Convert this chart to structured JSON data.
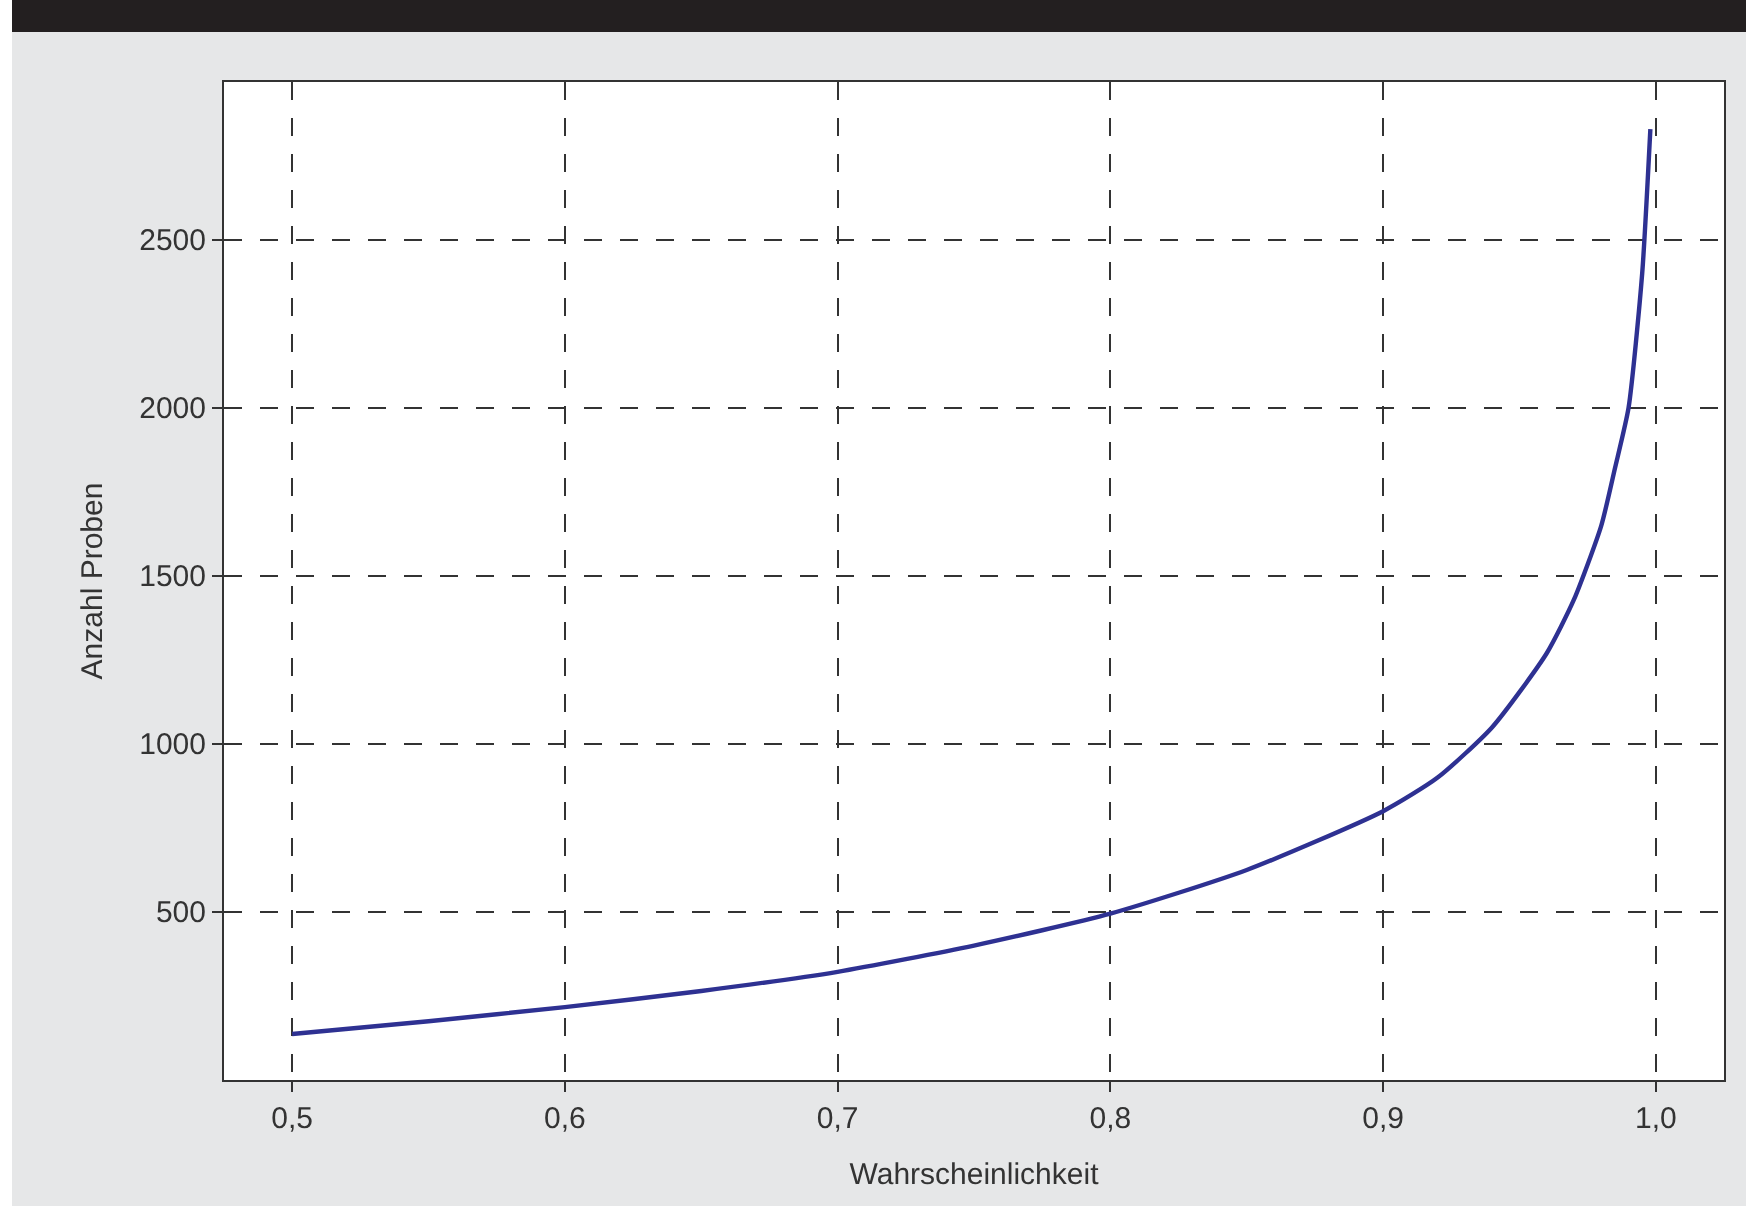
{
  "chart_data": {
    "type": "line",
    "xlabel": "Wahrscheinlichkeit",
    "ylabel": "Anzahl Proben",
    "x": [
      0.5,
      0.55,
      0.6,
      0.65,
      0.7,
      0.75,
      0.8,
      0.85,
      0.9,
      0.92,
      0.94,
      0.96,
      0.97,
      0.98,
      0.985,
      0.99,
      0.995,
      0.998
    ],
    "series": [
      {
        "color": "#2e3192",
        "values": [
          137,
          175,
          217,
          265,
          322,
          400,
          495,
          625,
          800,
          900,
          1050,
          1270,
          1430,
          1650,
          1820,
          2000,
          2400,
          2830
        ]
      }
    ],
    "xlim": [
      0.475,
      1.025
    ],
    "xticks": [
      {
        "value": 0.5,
        "label": "0,5"
      },
      {
        "value": 0.6,
        "label": "0,6"
      },
      {
        "value": 0.7,
        "label": "0,7"
      },
      {
        "value": 0.8,
        "label": "0,8"
      },
      {
        "value": 0.9,
        "label": "0,9"
      },
      {
        "value": 1.0,
        "label": "1,0"
      }
    ],
    "ylim": [
      0,
      2970
    ],
    "yticks": [
      500,
      1000,
      1500,
      2000,
      2500
    ],
    "grid": true,
    "marker": "none",
    "line_style": "solid"
  }
}
